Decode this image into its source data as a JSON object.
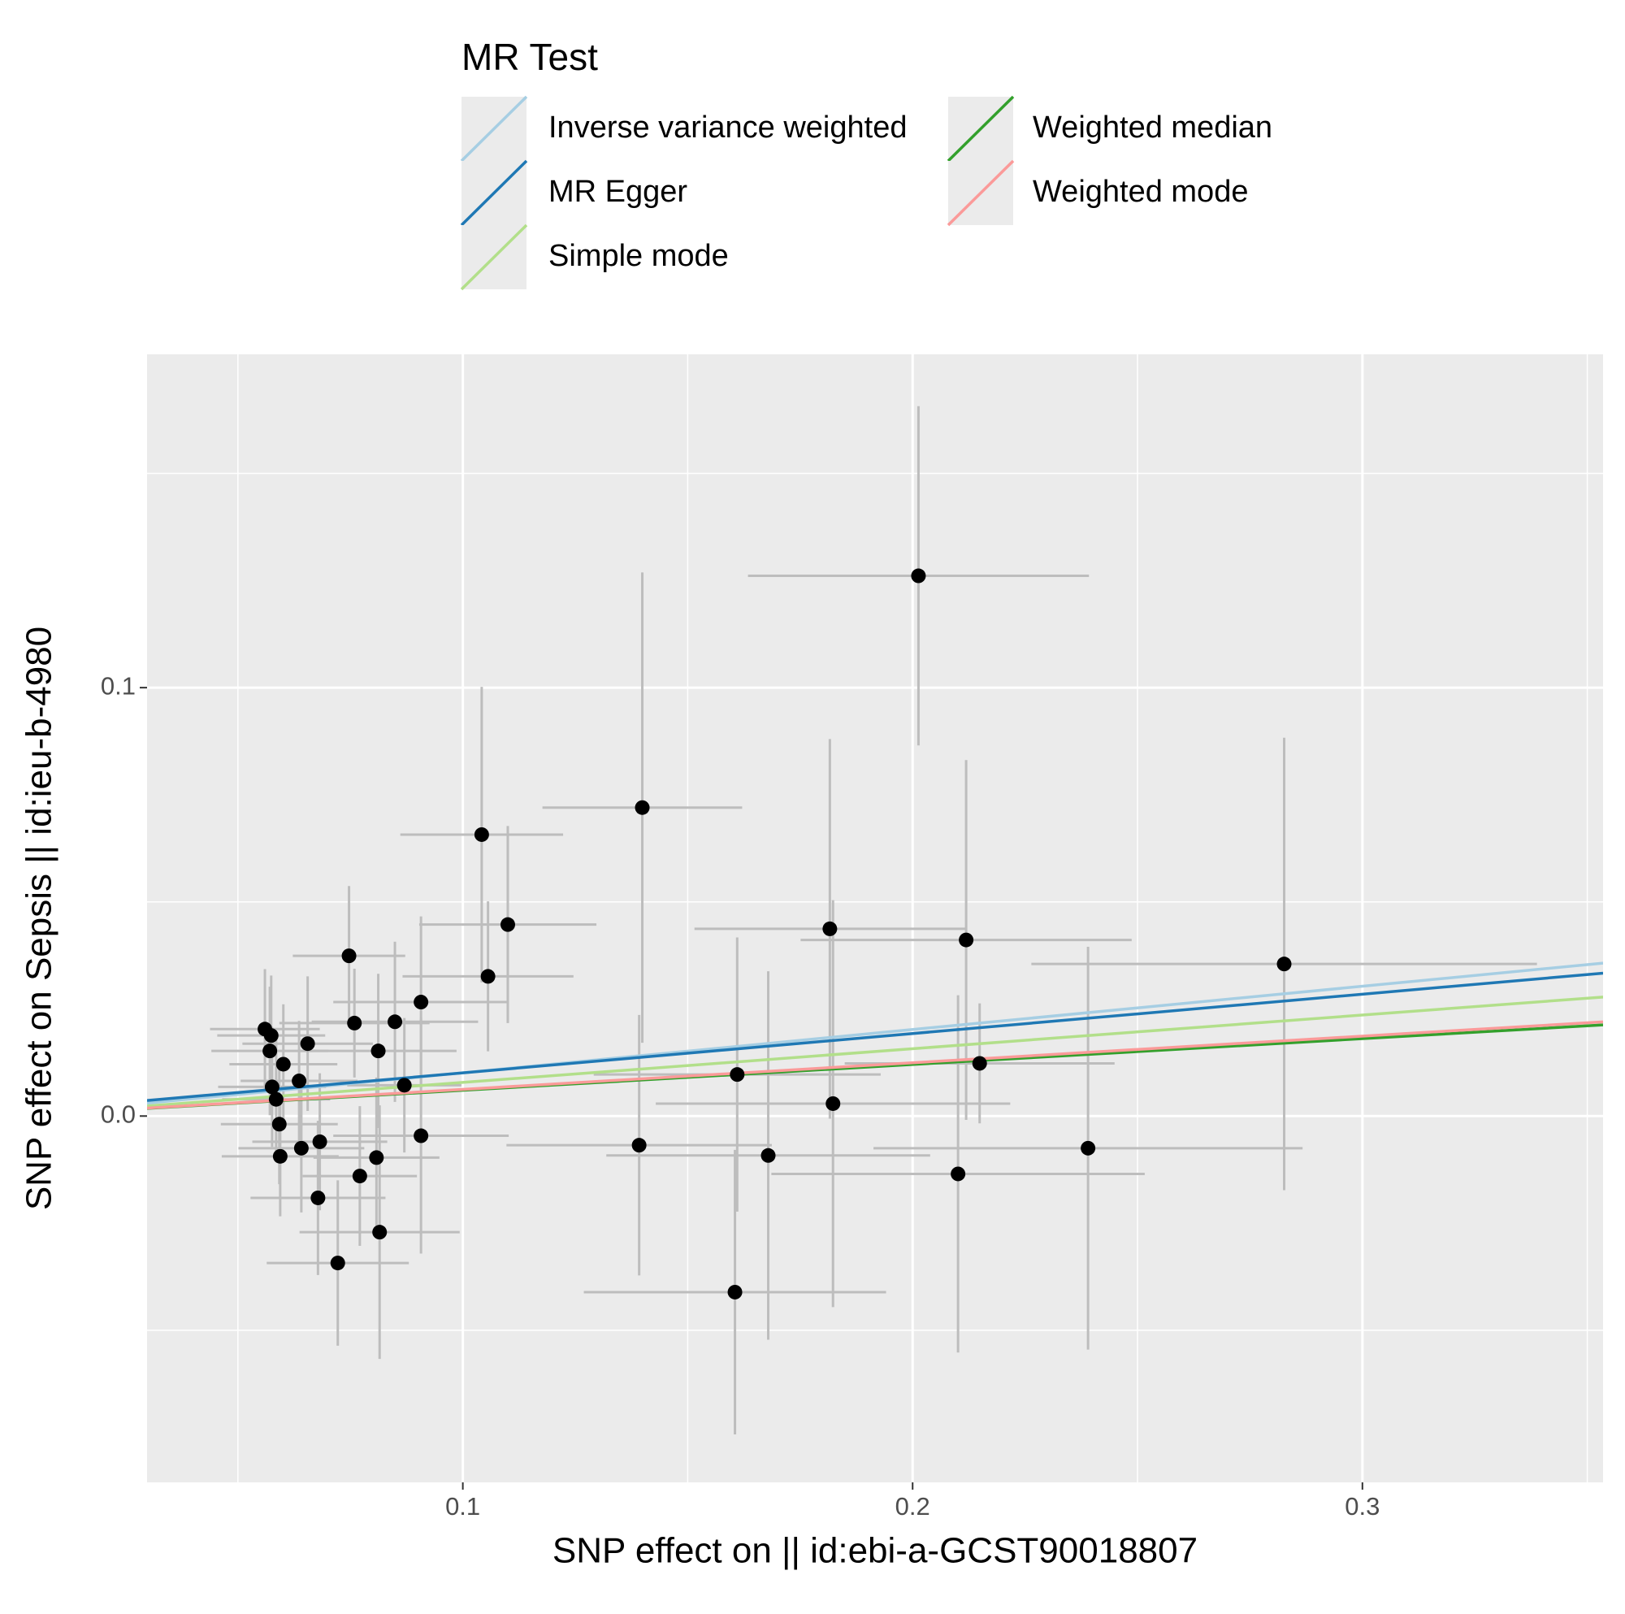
{
  "chart_data": {
    "type": "scatter",
    "x_label": "SNP effect on || id:ebi-a-GCST90018807",
    "y_label": "SNP effect on Sepsis || id:ieu-b-4980",
    "legend_title": "MR Test",
    "xlim": [
      0.0298,
      0.3535
    ],
    "ylim": [
      -0.0855,
      0.1778
    ],
    "xticks": [
      0.1,
      0.2,
      0.3
    ],
    "yticks": [
      {
        "value": 0,
        "label": "0.0"
      },
      0.1
    ],
    "xminor": [
      0.05,
      0.15,
      0.25,
      0.35
    ],
    "yminor": [
      -0.05,
      0.05,
      0.15
    ],
    "grid": true,
    "point_color": "#000000",
    "errorbar_color": "#bdbdbd",
    "x": [
      0.2013,
      0.1399,
      0.1042,
      0.11,
      0.1056,
      0.1816,
      0.2119,
      0.2826,
      0.0747,
      0.0907,
      0.0759,
      0.0849,
      0.0812,
      0.0655,
      0.056,
      0.0574,
      0.0571,
      0.0601,
      0.0636,
      0.0576,
      0.0585,
      0.087,
      0.0592,
      0.0594,
      0.0641,
      0.0682,
      0.0907,
      0.0808,
      0.0771,
      0.0678,
      0.0815,
      0.0722,
      0.161,
      0.1392,
      0.1679,
      0.1823,
      0.1605,
      0.2149,
      0.2101,
      0.239
    ],
    "y": [
      0.1261,
      0.072,
      0.0657,
      0.0447,
      0.0326,
      0.0437,
      0.0411,
      0.0355,
      0.0374,
      0.0266,
      0.0217,
      0.022,
      0.0152,
      0.0169,
      0.0203,
      0.0188,
      0.0152,
      0.0121,
      0.0082,
      0.0068,
      0.0039,
      0.0072,
      -0.0019,
      -0.0094,
      -0.0075,
      -0.006,
      -0.0046,
      -0.0097,
      -0.014,
      -0.0191,
      -0.0271,
      -0.0343,
      0.0097,
      -0.0068,
      -0.0092,
      0.0029,
      -0.0411,
      0.0123,
      -0.0135,
      -0.0075
    ],
    "xerr": [
      0.0379,
      0.0222,
      0.0181,
      0.0197,
      0.019,
      0.0301,
      0.0368,
      0.0562,
      0.0125,
      0.0195,
      0.0167,
      0.0185,
      0.0174,
      0.0145,
      0.0122,
      0.012,
      0.013,
      0.012,
      0.013,
      0.012,
      0.012,
      0.0127,
      0.013,
      0.013,
      0.014,
      0.015,
      0.0195,
      0.014,
      0.0127,
      0.015,
      0.0178,
      0.0158,
      0.0319,
      0.0295,
      0.036,
      0.0394,
      0.0336,
      0.03,
      0.0415,
      0.0477
    ],
    "yerr": [
      0.0396,
      0.0549,
      0.0345,
      0.023,
      0.0175,
      0.0443,
      0.042,
      0.0528,
      0.0163,
      0.02,
      0.0127,
      0.0187,
      0.018,
      0.0157,
      0.014,
      0.014,
      0.015,
      0.014,
      0.014,
      0.014,
      0.014,
      0.0157,
      0.014,
      0.014,
      0.015,
      0.016,
      0.0275,
      0.0187,
      0.0163,
      0.018,
      0.0296,
      0.0193,
      0.032,
      0.0304,
      0.043,
      0.0475,
      0.0332,
      0.014,
      0.0417,
      0.047
    ],
    "lines": [
      {
        "name": "Inverse variance weighted",
        "color": "#a6cee3",
        "slope": 0.101,
        "intercept": 0
      },
      {
        "name": "MR Egger",
        "color": "#1f78b4",
        "slope": 0.0918,
        "intercept": 0.0009
      },
      {
        "name": "Simple mode",
        "color": "#b2df8a",
        "slope": 0.0786,
        "intercept": 0
      },
      {
        "name": "Weighted median",
        "color": "#33a02c",
        "slope": 0.0602,
        "intercept": 0
      },
      {
        "name": "Weighted mode",
        "color": "#fb9a99",
        "slope": 0.0622,
        "intercept": 0
      }
    ]
  }
}
